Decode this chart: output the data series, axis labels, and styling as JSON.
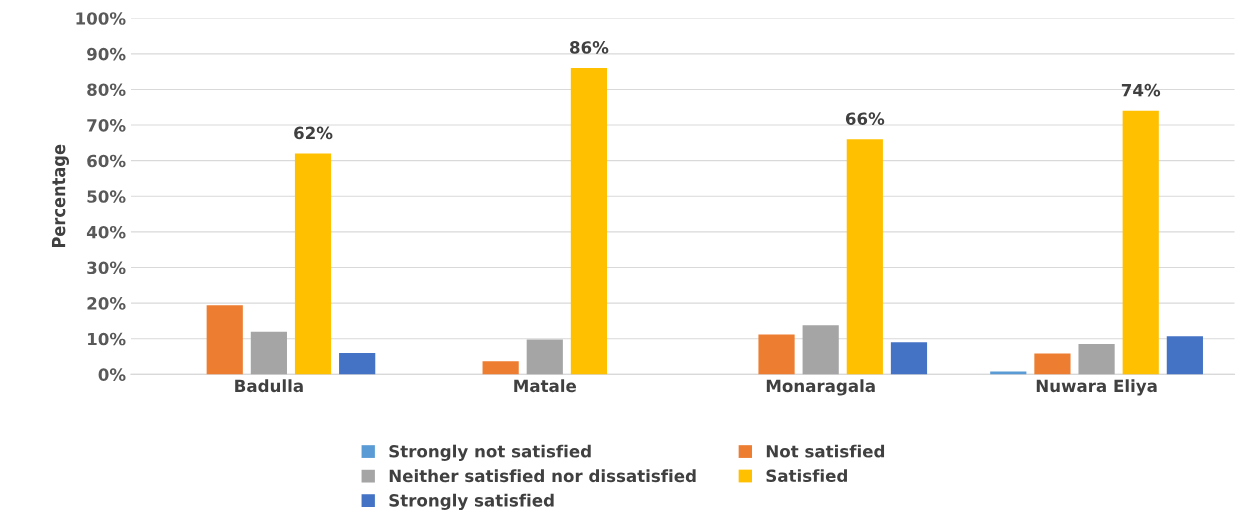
{
  "chart_data": {
    "type": "bar",
    "ylabel": "Percentage",
    "categories": [
      "Badulla",
      "Matale",
      "Monaragala",
      "Nuwara Eliya"
    ],
    "series": [
      {
        "name": "Strongly not satisfied",
        "color": "#5b9bd5",
        "values": [
          0,
          0,
          0,
          0.8
        ]
      },
      {
        "name": "Not satisfied",
        "color": "#ed7d31",
        "values": [
          19.4,
          3.7,
          11.2,
          5.9
        ]
      },
      {
        "name": "Neither satisfied nor dissatisfied",
        "color": "#a5a5a5",
        "values": [
          12,
          9.8,
          13.8,
          8.5
        ]
      },
      {
        "name": "Satisfied",
        "color": "#ffc000",
        "values": [
          62,
          86,
          66,
          74
        ],
        "value_labels": [
          "62%",
          "86%",
          "66%",
          "74%"
        ]
      },
      {
        "name": "Strongly satisfied",
        "color": "#4472c4",
        "values": [
          6,
          0,
          9,
          10.7
        ]
      }
    ],
    "ylim": [
      0,
      100
    ],
    "yticks": [
      {
        "value": 0,
        "label": "0%"
      },
      {
        "value": 10,
        "label": "10%"
      },
      {
        "value": 20,
        "label": "20%"
      },
      {
        "value": 30,
        "label": "30%"
      },
      {
        "value": 40,
        "label": "40%"
      },
      {
        "value": 50,
        "label": "50%"
      },
      {
        "value": 60,
        "label": "60%"
      },
      {
        "value": 70,
        "label": "70%"
      },
      {
        "value": 80,
        "label": "80%"
      },
      {
        "value": 90,
        "label": "90%"
      },
      {
        "value": 100,
        "label": "100%"
      }
    ],
    "grid": "y",
    "legend": "bottom"
  }
}
